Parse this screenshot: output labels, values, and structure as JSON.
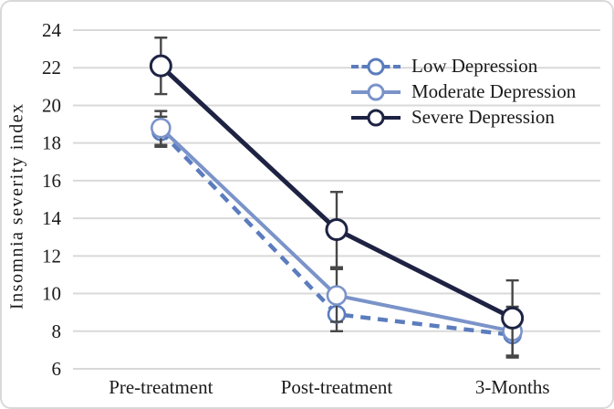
{
  "figure": {
    "background": "#ffffff",
    "border_color": "#d9d9d9"
  },
  "chart_data": {
    "type": "line",
    "title": "",
    "xlabel": "",
    "ylabel": "Insomnia severity index",
    "categories": [
      "Pre-treatment",
      "Post-treatment",
      "3-Months"
    ],
    "ylim": [
      6,
      24
    ],
    "ytick_step": 2,
    "yticks": [
      6,
      8,
      10,
      12,
      14,
      16,
      18,
      20,
      22,
      24
    ],
    "grid": true,
    "gridline_color": "#d9d9d9",
    "error_bar_color": "#474747",
    "text_color": "#1a1a1a",
    "legend_position": "top-right",
    "series": [
      {
        "name": "Low Depression",
        "values": [
          18.6,
          8.9,
          7.8
        ],
        "errors": [
          0.8,
          0.9,
          1.2
        ],
        "color": "#5b7cbd",
        "line_style": "dashed",
        "marker": "open-circle"
      },
      {
        "name": "Moderate Depression",
        "values": [
          18.8,
          9.9,
          8.0
        ],
        "errors": [
          0.9,
          1.4,
          1.3
        ],
        "color": "#7a93c9",
        "line_style": "solid",
        "marker": "open-circle"
      },
      {
        "name": "Severe Depression",
        "values": [
          22.1,
          13.4,
          8.7
        ],
        "errors": [
          1.5,
          2.0,
          2.0
        ],
        "color": "#1e2343",
        "line_style": "solid",
        "marker": "open-circle"
      }
    ]
  }
}
